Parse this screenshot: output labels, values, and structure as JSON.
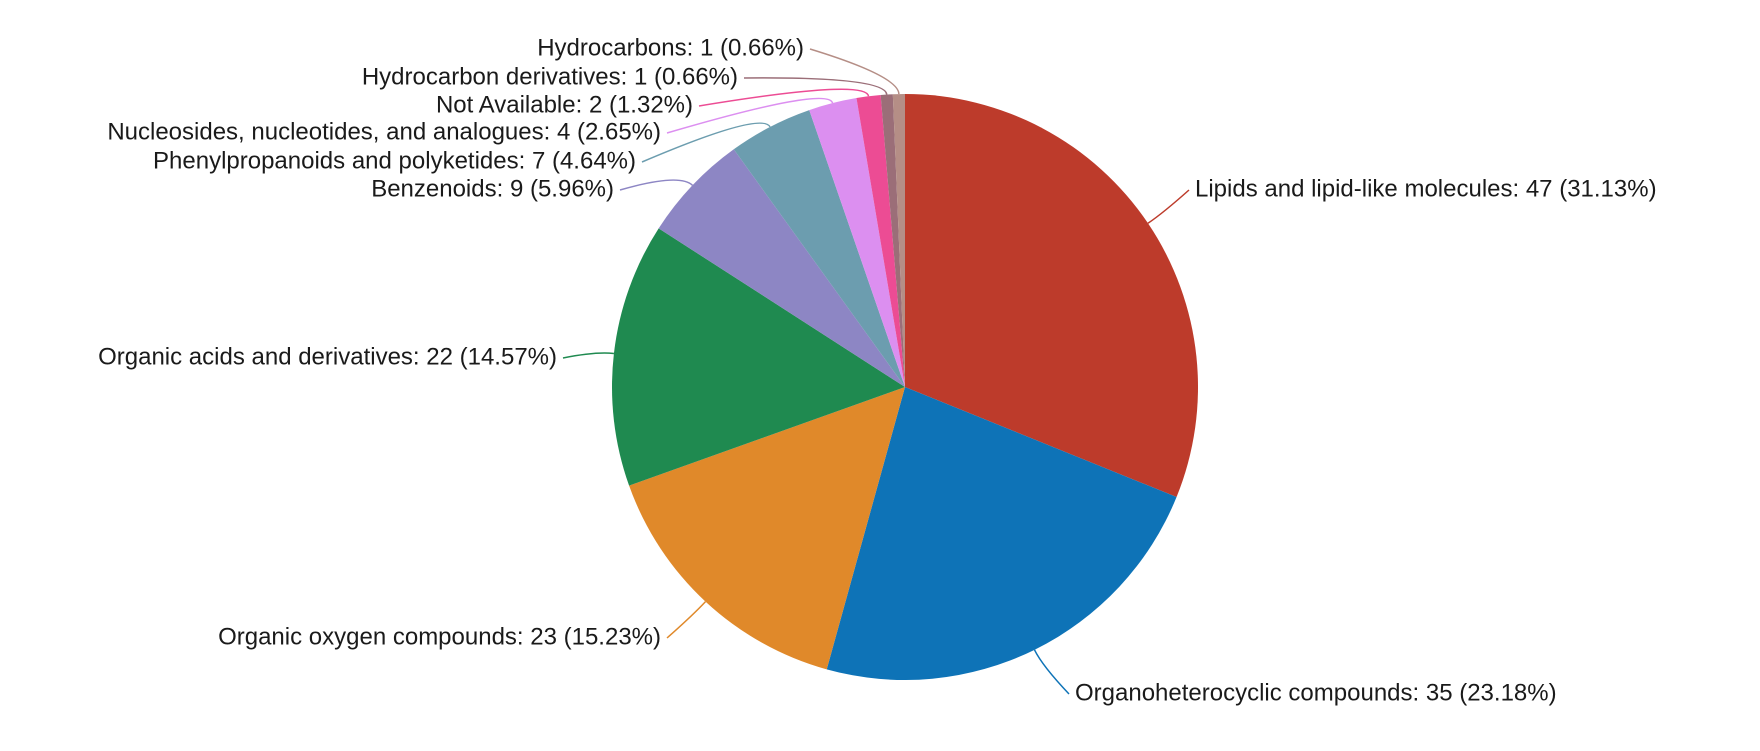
{
  "chart_data": {
    "type": "pie",
    "values": [
      47,
      35,
      23,
      22,
      9,
      7,
      4,
      2,
      1,
      1
    ],
    "value_labels": [
      "Lipids and lipid-like molecules: 47 (31.13%)",
      "Organoheterocyclic compounds: 35 (23.18%)",
      "Organic oxygen compounds: 23 (15.23%)",
      "Organic acids and derivatives: 22 (14.57%)",
      "Benzenoids: 9 (5.96%)",
      "Phenylpropanoids and polyketides: 7 (4.64%)",
      "Nucleosides, nucleotides, and analogues: 4 (2.65%)",
      "Not Available: 2 (1.32%)",
      "Hydrocarbon derivatives: 1 (0.66%)",
      "Hydrocarbons: 1 (0.66%)"
    ],
    "colors": [
      "#bd3b2b",
      "#0e73b7",
      "#e0892a",
      "#1f8a50",
      "#8d86c4",
      "#6c9daf",
      "#dc8ff0",
      "#ec4c94",
      "#9b6e78",
      "#b58e86"
    ]
  }
}
